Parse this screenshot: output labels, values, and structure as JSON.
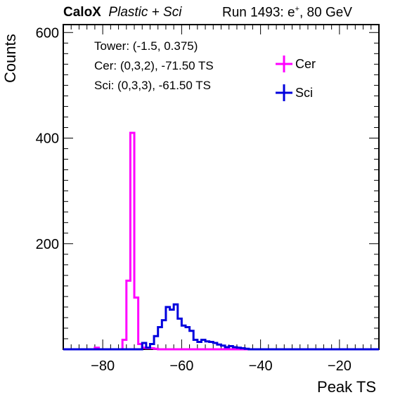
{
  "header": {
    "experiment": "CaloX",
    "detector": "Plastic + Sci",
    "run_prefix": "Run 1493: e",
    "run_sup": "+",
    "run_suffix": ", 80 GeV"
  },
  "info": {
    "line1": "Tower: (-1.5, 0.375)",
    "line2": "Cer: (0,3,2), -71.50 TS",
    "line3": "Sci: (0,3,3), -61.50 TS"
  },
  "chart_data": {
    "type": "line",
    "title": "",
    "xlabel": "Peak TS",
    "ylabel": "Counts",
    "xlim": [
      -90,
      -10
    ],
    "ylim": [
      0,
      615
    ],
    "x_ticks": [
      -80,
      -60,
      -40,
      -20
    ],
    "x_tick_labels": [
      "−80",
      "−60",
      "−40",
      "−20"
    ],
    "y_ticks": [
      200,
      400,
      600
    ],
    "y_tick_labels": [
      "200",
      "400",
      "600"
    ],
    "bin_width": 1,
    "legend_position": "top-right",
    "grid": false,
    "series": [
      {
        "name": "Cer",
        "color": "#ff00ff",
        "bins": [
          {
            "x": -82,
            "y": 3
          },
          {
            "x": -81,
            "y": 0
          },
          {
            "x": -75,
            "y": 18
          },
          {
            "x": -74,
            "y": 130
          },
          {
            "x": -73,
            "y": 410
          },
          {
            "x": -72,
            "y": 98
          },
          {
            "x": -71,
            "y": 10
          },
          {
            "x": -70,
            "y": 3
          },
          {
            "x": -69,
            "y": 2
          },
          {
            "x": -68,
            "y": 2
          },
          {
            "x": -67,
            "y": 1
          }
        ]
      },
      {
        "name": "Sci",
        "color": "#0000dd",
        "bins": [
          {
            "x": -70,
            "y": 12
          },
          {
            "x": -69,
            "y": 3
          },
          {
            "x": -68,
            "y": 10
          },
          {
            "x": -67,
            "y": 25
          },
          {
            "x": -66,
            "y": 42
          },
          {
            "x": -65,
            "y": 55
          },
          {
            "x": -64,
            "y": 80
          },
          {
            "x": -63,
            "y": 75
          },
          {
            "x": -62,
            "y": 85
          },
          {
            "x": -61,
            "y": 58
          },
          {
            "x": -60,
            "y": 45
          },
          {
            "x": -59,
            "y": 42
          },
          {
            "x": -58,
            "y": 35
          },
          {
            "x": -57,
            "y": 18
          },
          {
            "x": -56,
            "y": 14
          },
          {
            "x": -55,
            "y": 18
          },
          {
            "x": -54,
            "y": 15
          },
          {
            "x": -53,
            "y": 14
          },
          {
            "x": -52,
            "y": 12
          },
          {
            "x": -51,
            "y": 9
          },
          {
            "x": -50,
            "y": 7
          },
          {
            "x": -49,
            "y": 4
          },
          {
            "x": -48,
            "y": 6
          },
          {
            "x": -47,
            "y": 4
          },
          {
            "x": -46,
            "y": 3
          },
          {
            "x": -45,
            "y": 2
          },
          {
            "x": -44,
            "y": 1
          }
        ]
      }
    ]
  }
}
